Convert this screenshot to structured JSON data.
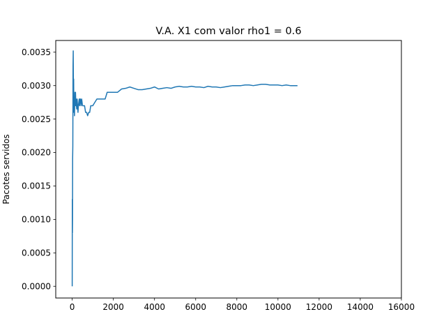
{
  "chart_data": {
    "type": "line",
    "title": "V.A. X1 com valor rho1 = 0.6",
    "xlabel": "",
    "ylabel": "Pacotes servidos",
    "xlim": [
      -800,
      16000
    ],
    "ylim": [
      -0.000175,
      0.003675
    ],
    "xticks": [
      0,
      2000,
      4000,
      6000,
      8000,
      10000,
      12000,
      14000,
      16000
    ],
    "xtick_labels": [
      "0",
      "2000",
      "4000",
      "6000",
      "8000",
      "10000",
      "12000",
      "14000",
      "16000"
    ],
    "yticks": [
      0.0,
      0.0005,
      0.001,
      0.0015,
      0.002,
      0.0025,
      0.003,
      0.0035
    ],
    "ytick_labels": [
      "0.0000",
      "0.0005",
      "0.0010",
      "0.0015",
      "0.0020",
      "0.0025",
      "0.0030",
      "0.0035"
    ],
    "grid": false,
    "color": "#1f77b4",
    "series": [
      {
        "x": [
          0,
          5,
          10,
          15,
          20,
          30,
          40,
          50,
          60,
          70,
          80,
          90,
          100,
          110,
          120,
          130,
          140,
          150,
          160,
          170,
          180,
          190,
          200,
          220,
          240,
          260,
          280,
          300,
          320,
          340,
          360,
          380,
          400,
          430,
          460,
          500,
          550,
          600,
          650,
          700,
          750,
          800,
          850,
          900,
          950,
          1000,
          1100,
          1200,
          1300,
          1400,
          1500,
          1600,
          1700,
          1800,
          1900,
          2000,
          2200,
          2400,
          2600,
          2800,
          3000,
          3200,
          3400,
          3600,
          3800,
          4000,
          4200,
          4400,
          4600,
          4800,
          5000,
          5200,
          5400,
          5600,
          5800,
          6000,
          6200,
          6400,
          6600,
          6800,
          7000,
          7200,
          7400,
          7600,
          7800,
          8000,
          8200,
          8400,
          8600,
          8800,
          9000,
          9200,
          9400,
          9600,
          9800,
          10000,
          10200,
          10400,
          10600,
          10800,
          10950
        ],
        "y": [
          0.0,
          0.0013,
          0.0008,
          0.001,
          0.0019,
          0.0021,
          0.0033,
          0.00352,
          0.0028,
          0.0031,
          0.0026,
          0.00275,
          0.0028,
          0.00255,
          0.0027,
          0.0029,
          0.0027,
          0.00285,
          0.0029,
          0.0028,
          0.0027,
          0.0028,
          0.00272,
          0.00265,
          0.0028,
          0.0027,
          0.0026,
          0.0027,
          0.00275,
          0.0028,
          0.0027,
          0.0028,
          0.0028,
          0.0027,
          0.0028,
          0.0027,
          0.0027,
          0.0027,
          0.0026,
          0.0026,
          0.00255,
          0.0026,
          0.0026,
          0.0027,
          0.0027,
          0.0027,
          0.00275,
          0.0028,
          0.0028,
          0.0028,
          0.0028,
          0.0028,
          0.0029,
          0.0029,
          0.0029,
          0.0029,
          0.0029,
          0.00295,
          0.00296,
          0.00298,
          0.00296,
          0.00294,
          0.00294,
          0.00295,
          0.00296,
          0.00298,
          0.00295,
          0.00296,
          0.00297,
          0.00296,
          0.00298,
          0.00299,
          0.00298,
          0.00298,
          0.00299,
          0.00298,
          0.00298,
          0.00297,
          0.00299,
          0.00298,
          0.00298,
          0.00297,
          0.00298,
          0.00299,
          0.003,
          0.003,
          0.003,
          0.00301,
          0.00301,
          0.003,
          0.00301,
          0.00302,
          0.00302,
          0.00301,
          0.00301,
          0.00301,
          0.003,
          0.00301,
          0.003,
          0.003,
          0.003
        ]
      }
    ]
  }
}
